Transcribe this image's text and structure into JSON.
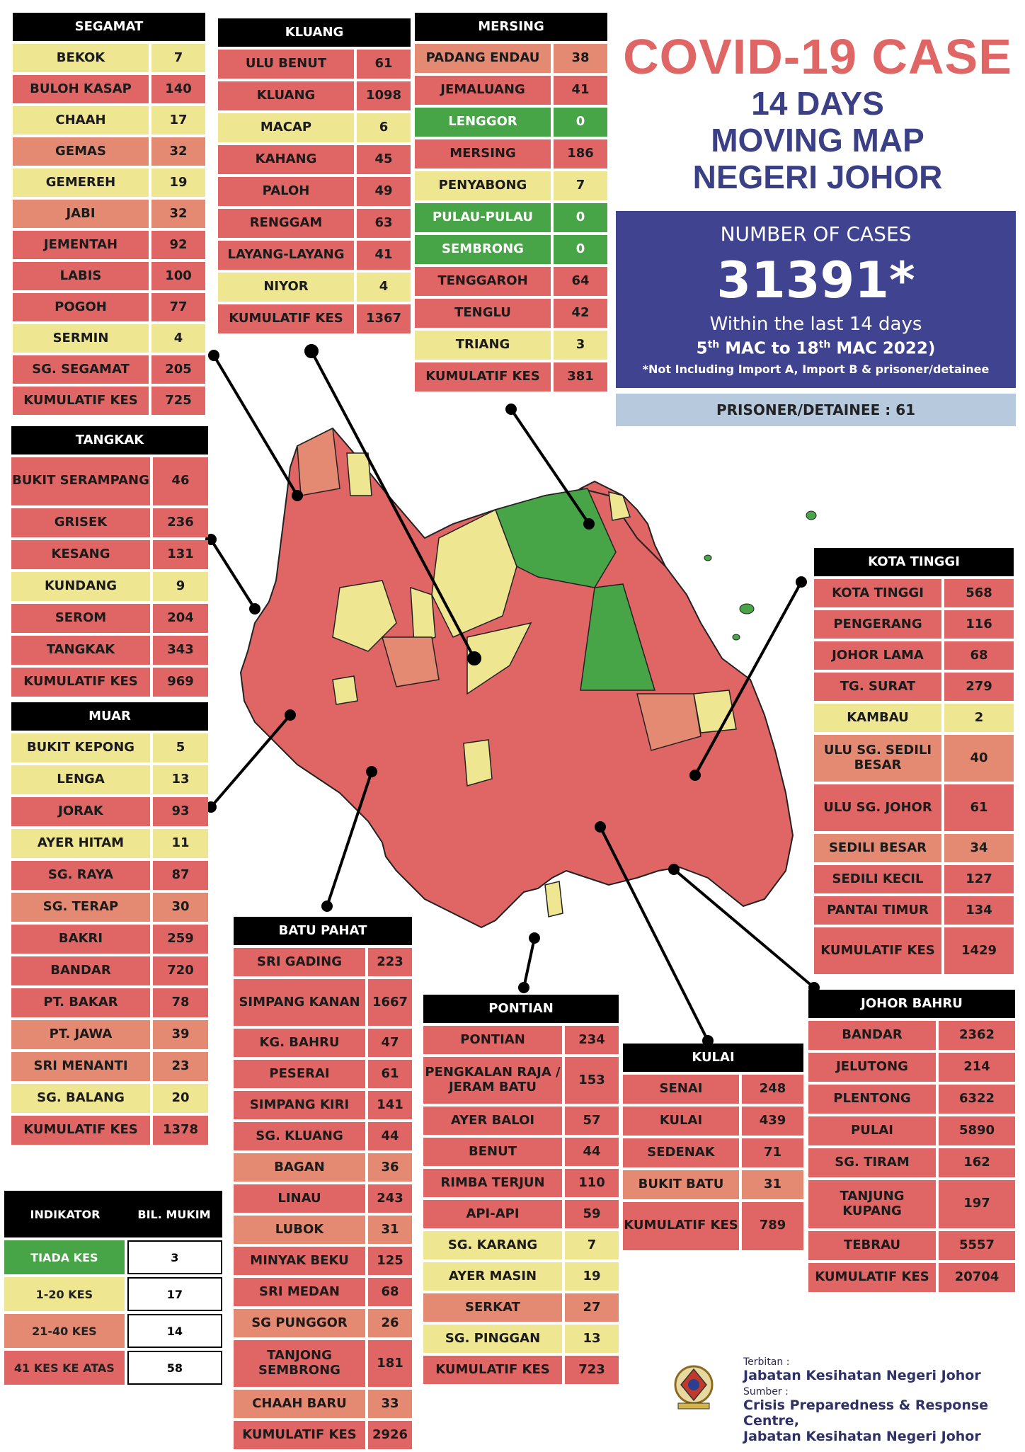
{
  "title": {
    "line1": "COVID-19 CASE",
    "line2": "14 DAYS",
    "line3": "MOVING MAP",
    "line4": "NEGERI JOHOR"
  },
  "cases": {
    "label": "NUMBER OF CASES",
    "total": "31391*",
    "within": "Within the last 14 days",
    "range_day1": "5",
    "range_sup1": "th",
    "range_mid": " MAC to 18",
    "range_sup2": "th",
    "range_end": " MAC 2022)",
    "note": "*Not Including Import A, Import B & prisoner/detainee",
    "prisoner": "PRISONER/DETAINEE : 61"
  },
  "colors": {
    "tiada": "#47a447",
    "low": "#efe691",
    "mid": "#e58a72",
    "high": "#e06666",
    "title_red": "#e06666",
    "title_blue": "#3a3f86",
    "cases_bg": "#3f4390"
  },
  "districts": {
    "segamat": {
      "title": "SEGAMAT",
      "rows": [
        {
          "name": "BEKOK",
          "value": "7",
          "level": "yel"
        },
        {
          "name": "BULOH KASAP",
          "value": "140",
          "level": "red"
        },
        {
          "name": "CHAAH",
          "value": "17",
          "level": "yel"
        },
        {
          "name": "GEMAS",
          "value": "32",
          "level": "sal"
        },
        {
          "name": "GEMEREH",
          "value": "19",
          "level": "yel"
        },
        {
          "name": "JABI",
          "value": "32",
          "level": "sal"
        },
        {
          "name": "JEMENTAH",
          "value": "92",
          "level": "red"
        },
        {
          "name": "LABIS",
          "value": "100",
          "level": "red"
        },
        {
          "name": "POGOH",
          "value": "77",
          "level": "red"
        },
        {
          "name": "SERMIN",
          "value": "4",
          "level": "yel"
        },
        {
          "name": "SG. SEGAMAT",
          "value": "205",
          "level": "red"
        },
        {
          "name": "KUMULATIF KES",
          "value": "725",
          "level": "red"
        }
      ]
    },
    "kluang": {
      "title": "KLUANG",
      "rows": [
        {
          "name": "ULU BENUT",
          "value": "61",
          "level": "red"
        },
        {
          "name": "KLUANG",
          "value": "1098",
          "level": "red"
        },
        {
          "name": "MACAP",
          "value": "6",
          "level": "yel"
        },
        {
          "name": "KAHANG",
          "value": "45",
          "level": "red"
        },
        {
          "name": "PALOH",
          "value": "49",
          "level": "red"
        },
        {
          "name": "RENGGAM",
          "value": "63",
          "level": "red"
        },
        {
          "name": "LAYANG-LAYANG",
          "value": "41",
          "level": "red"
        },
        {
          "name": "NIYOR",
          "value": "4",
          "level": "yel"
        },
        {
          "name": "KUMULATIF KES",
          "value": "1367",
          "level": "red"
        }
      ]
    },
    "mersing": {
      "title": "MERSING",
      "rows": [
        {
          "name": "PADANG ENDAU",
          "value": "38",
          "level": "sal"
        },
        {
          "name": "JEMALUANG",
          "value": "41",
          "level": "red"
        },
        {
          "name": "LENGGOR",
          "value": "0",
          "level": "grn"
        },
        {
          "name": "MERSING",
          "value": "186",
          "level": "red"
        },
        {
          "name": "PENYABONG",
          "value": "7",
          "level": "yel"
        },
        {
          "name": "PULAU-PULAU",
          "value": "0",
          "level": "grn"
        },
        {
          "name": "SEMBRONG",
          "value": "0",
          "level": "grn"
        },
        {
          "name": "TENGGAROH",
          "value": "64",
          "level": "red"
        },
        {
          "name": "TENGLU",
          "value": "42",
          "level": "red"
        },
        {
          "name": "TRIANG",
          "value": "3",
          "level": "yel"
        },
        {
          "name": "KUMULATIF KES",
          "value": "381",
          "level": "red"
        }
      ]
    },
    "tangkak": {
      "title": "TANGKAK",
      "rows": [
        {
          "name": "BUKIT SERAMPANG",
          "value": "46",
          "level": "red",
          "tall": true
        },
        {
          "name": "GRISEK",
          "value": "236",
          "level": "red"
        },
        {
          "name": "KESANG",
          "value": "131",
          "level": "red"
        },
        {
          "name": "KUNDANG",
          "value": "9",
          "level": "yel"
        },
        {
          "name": "SEROM",
          "value": "204",
          "level": "red"
        },
        {
          "name": "TANGKAK",
          "value": "343",
          "level": "red"
        },
        {
          "name": "KUMULATIF KES",
          "value": "969",
          "level": "red"
        }
      ]
    },
    "muar": {
      "title": "MUAR",
      "rows": [
        {
          "name": "BUKIT KEPONG",
          "value": "5",
          "level": "yel"
        },
        {
          "name": "LENGA",
          "value": "13",
          "level": "yel"
        },
        {
          "name": "JORAK",
          "value": "93",
          "level": "red"
        },
        {
          "name": "AYER HITAM",
          "value": "11",
          "level": "yel"
        },
        {
          "name": "SG. RAYA",
          "value": "87",
          "level": "red"
        },
        {
          "name": "SG. TERAP",
          "value": "30",
          "level": "sal"
        },
        {
          "name": "BAKRI",
          "value": "259",
          "level": "red"
        },
        {
          "name": "BANDAR",
          "value": "720",
          "level": "red"
        },
        {
          "name": "PT. BAKAR",
          "value": "78",
          "level": "red"
        },
        {
          "name": "PT. JAWA",
          "value": "39",
          "level": "sal"
        },
        {
          "name": "SRI MENANTI",
          "value": "23",
          "level": "sal"
        },
        {
          "name": "SG. BALANG",
          "value": "20",
          "level": "yel"
        },
        {
          "name": "KUMULATIF KES",
          "value": "1378",
          "level": "red"
        }
      ]
    },
    "batu_pahat": {
      "title": "BATU PAHAT",
      "rows": [
        {
          "name": "SRI GADING",
          "value": "223",
          "level": "red"
        },
        {
          "name": "SIMPANG KANAN",
          "value": "1667",
          "level": "red",
          "tall": true
        },
        {
          "name": "KG. BAHRU",
          "value": "47",
          "level": "red"
        },
        {
          "name": "PESERAI",
          "value": "61",
          "level": "red"
        },
        {
          "name": "SIMPANG KIRI",
          "value": "141",
          "level": "red"
        },
        {
          "name": "SG. KLUANG",
          "value": "44",
          "level": "red"
        },
        {
          "name": "BAGAN",
          "value": "36",
          "level": "sal"
        },
        {
          "name": "LINAU",
          "value": "243",
          "level": "red"
        },
        {
          "name": "LUBOK",
          "value": "31",
          "level": "sal"
        },
        {
          "name": "MINYAK BEKU",
          "value": "125",
          "level": "red"
        },
        {
          "name": "SRI MEDAN",
          "value": "68",
          "level": "red"
        },
        {
          "name": "SG PUNGGOR",
          "value": "26",
          "level": "sal"
        },
        {
          "name": "TANJONG SEMBRONG",
          "value": "181",
          "level": "red",
          "tall": true
        },
        {
          "name": "CHAAH BARU",
          "value": "33",
          "level": "sal"
        },
        {
          "name": "KUMULATIF KES",
          "value": "2926",
          "level": "red"
        }
      ]
    },
    "pontian": {
      "title": "PONTIAN",
      "rows": [
        {
          "name": "PONTIAN",
          "value": "234",
          "level": "red"
        },
        {
          "name": "PENGKALAN RAJA / JERAM BATU",
          "value": "153",
          "level": "red",
          "tall": true
        },
        {
          "name": "AYER BALOI",
          "value": "57",
          "level": "red"
        },
        {
          "name": "BENUT",
          "value": "44",
          "level": "red"
        },
        {
          "name": "RIMBA TERJUN",
          "value": "110",
          "level": "red"
        },
        {
          "name": "API-API",
          "value": "59",
          "level": "red"
        },
        {
          "name": "SG. KARANG",
          "value": "7",
          "level": "yel"
        },
        {
          "name": "AYER MASIN",
          "value": "19",
          "level": "yel"
        },
        {
          "name": "SERKAT",
          "value": "27",
          "level": "sal"
        },
        {
          "name": "SG. PINGGAN",
          "value": "13",
          "level": "yel"
        },
        {
          "name": "KUMULATIF KES",
          "value": "723",
          "level": "red"
        }
      ]
    },
    "kulai": {
      "title": "KULAI",
      "rows": [
        {
          "name": "SENAI",
          "value": "248",
          "level": "red"
        },
        {
          "name": "KULAI",
          "value": "439",
          "level": "red"
        },
        {
          "name": "SEDENAK",
          "value": "71",
          "level": "red"
        },
        {
          "name": "BUKIT BATU",
          "value": "31",
          "level": "sal"
        },
        {
          "name": "KUMULATIF KES",
          "value": "789",
          "level": "red",
          "tall": true
        }
      ]
    },
    "kota_tinggi": {
      "title": "KOTA TINGGI",
      "rows": [
        {
          "name": "KOTA TINGGI",
          "value": "568",
          "level": "red"
        },
        {
          "name": "PENGERANG",
          "value": "116",
          "level": "red"
        },
        {
          "name": "JOHOR LAMA",
          "value": "68",
          "level": "red"
        },
        {
          "name": "TG. SURAT",
          "value": "279",
          "level": "red"
        },
        {
          "name": "KAMBAU",
          "value": "2",
          "level": "yel"
        },
        {
          "name": "ULU SG. SEDILI BESAR",
          "value": "40",
          "level": "sal",
          "tall": true
        },
        {
          "name": "ULU  SG. JOHOR",
          "value": "61",
          "level": "red",
          "tall": true
        },
        {
          "name": "SEDILI BESAR",
          "value": "34",
          "level": "sal"
        },
        {
          "name": "SEDILI KECIL",
          "value": "127",
          "level": "red"
        },
        {
          "name": "PANTAI TIMUR",
          "value": "134",
          "level": "red"
        },
        {
          "name": "KUMULATIF KES",
          "value": "1429",
          "level": "red",
          "tall": true
        }
      ]
    },
    "johor_bahru": {
      "title": "JOHOR BAHRU",
      "rows": [
        {
          "name": "BANDAR",
          "value": "2362",
          "level": "red"
        },
        {
          "name": "JELUTONG",
          "value": "214",
          "level": "red"
        },
        {
          "name": "PLENTONG",
          "value": "6322",
          "level": "red"
        },
        {
          "name": "PULAI",
          "value": "5890",
          "level": "red"
        },
        {
          "name": "SG. TIRAM",
          "value": "162",
          "level": "red"
        },
        {
          "name": "TANJUNG KUPANG",
          "value": "197",
          "level": "red",
          "tall": true
        },
        {
          "name": "TEBRAU",
          "value": "5557",
          "level": "red"
        },
        {
          "name": "KUMULATIF KES",
          "value": "20704",
          "level": "red"
        }
      ]
    }
  },
  "indicator": {
    "col1": "INDIKATOR",
    "col2": "BIL. MUKIM",
    "rows": [
      {
        "label": "TIADA KES",
        "count": "3",
        "level": "grn"
      },
      {
        "label": "1-20 KES",
        "count": "17",
        "level": "yel"
      },
      {
        "label": "21-40 KES",
        "count": "14",
        "level": "sal"
      },
      {
        "label": "41 KES KE ATAS",
        "count": "58",
        "level": "red"
      }
    ]
  },
  "credits": {
    "published_label": "Terbitan :",
    "published": "Jabatan Kesihatan Negeri Johor",
    "source_label": "Sumber :",
    "source1": "Crisis Preparedness & Response Centre,",
    "source2": "Jabatan Kesihatan Negeri Johor"
  }
}
